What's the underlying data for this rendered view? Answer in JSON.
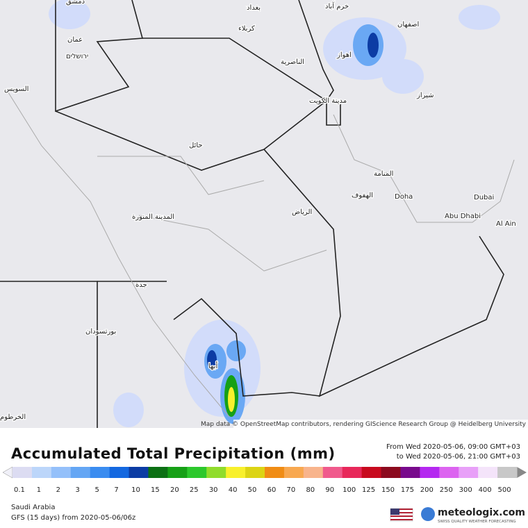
{
  "map": {
    "labels": [
      "دمشق",
      "بغداد",
      "خرم آباد",
      "كربلاء",
      "اصفهان",
      "عمان",
      "ירושלים",
      "اهواز",
      "الناصرية",
      "السويس",
      "مدينة الكويت",
      "شيراز",
      "حائل",
      "المنامة",
      "الهفوف",
      "Doha",
      "Dubai",
      "الرياض",
      "Abu Dhabi",
      "Al Ain",
      "المدينة المنورة",
      "جدة",
      "أبها",
      "بورتسودان",
      "الخرطوم"
    ],
    "attribution": "Map data © OpenStreetMap contributors, rendering GIScience Research Group @ Heidelberg University"
  },
  "legend": {
    "title": "Accumulated Total Precipitation (mm)",
    "from": "From Wed 2020-05-06, 09:00 GMT+03",
    "to": "to Wed 2020-05-06, 21:00 GMT+03",
    "scale": [
      {
        "value": 0.1,
        "color": "#dcdcf2"
      },
      {
        "value": 1,
        "color": "#bcd6fa"
      },
      {
        "value": 2,
        "color": "#94c0fa"
      },
      {
        "value": 3,
        "color": "#64a6f4"
      },
      {
        "value": 5,
        "color": "#3a8cf0"
      },
      {
        "value": 7,
        "color": "#1468e0"
      },
      {
        "value": 10,
        "color": "#0c3ca4"
      },
      {
        "value": 15,
        "color": "#0c7014"
      },
      {
        "value": 20,
        "color": "#16a016"
      },
      {
        "value": 25,
        "color": "#2cc82c"
      },
      {
        "value": 30,
        "color": "#90dc2c"
      },
      {
        "value": 40,
        "color": "#f8f02c"
      },
      {
        "value": 50,
        "color": "#dcd414"
      },
      {
        "value": 60,
        "color": "#f08c14"
      },
      {
        "value": 70,
        "color": "#f8a850"
      },
      {
        "value": 80,
        "color": "#f8b48c"
      },
      {
        "value": 90,
        "color": "#f05a8c"
      },
      {
        "value": 100,
        "color": "#e8285a"
      },
      {
        "value": 125,
        "color": "#c80a1e"
      },
      {
        "value": 150,
        "color": "#8c0a1e"
      },
      {
        "value": 175,
        "color": "#780a8c"
      },
      {
        "value": 200,
        "color": "#b428f0"
      },
      {
        "value": 250,
        "color": "#dc64f0"
      },
      {
        "value": 300,
        "color": "#e8a0f8"
      },
      {
        "value": 400,
        "color": "#f4e4fa"
      },
      {
        "value": 500,
        "color": "#c8c8c8"
      }
    ]
  },
  "footer": {
    "region": "Saudi Arabia",
    "model": "GFS (15 days) from  2020-05-06/06z",
    "brand": "meteologix.com",
    "tagline": "SWISS QUALITY WEATHER FORECASTING"
  }
}
